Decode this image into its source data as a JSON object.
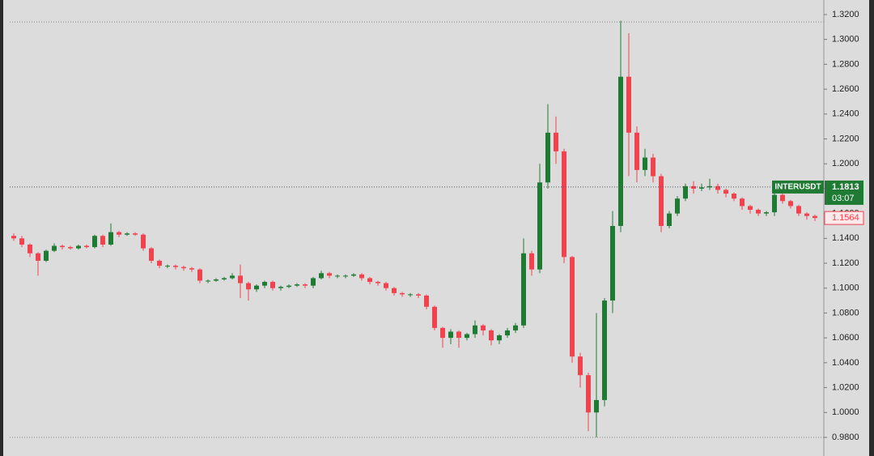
{
  "chart_data": {
    "type": "candlestick",
    "symbol": "INTERUSDT",
    "last_price": 1.1813,
    "countdown": "03:07",
    "close_price": 1.1564,
    "up_color": "#1f7a33",
    "down_color": "#f0424f",
    "range_lines": [
      1.314,
      0.98
    ],
    "ylim": [
      0.965,
      1.3317
    ],
    "yticks": [
      {
        "value": 0.98,
        "label": "0.9800"
      },
      {
        "value": 1.0,
        "label": "1.0000"
      },
      {
        "value": 1.02,
        "label": "1.0200"
      },
      {
        "value": 1.04,
        "label": "1.0400"
      },
      {
        "value": 1.06,
        "label": "1.0600"
      },
      {
        "value": 1.08,
        "label": "1.0800"
      },
      {
        "value": 1.1,
        "label": "1.1000"
      },
      {
        "value": 1.12,
        "label": "1.1200"
      },
      {
        "value": 1.14,
        "label": "1.1400"
      },
      {
        "value": 1.16,
        "label": "1.1600"
      },
      {
        "value": 1.18,
        "label": "1.1800"
      },
      {
        "value": 1.2,
        "label": "1.2000"
      },
      {
        "value": 1.22,
        "label": "1.2200"
      },
      {
        "value": 1.24,
        "label": "1.2400"
      },
      {
        "value": 1.26,
        "label": "1.2600"
      },
      {
        "value": 1.28,
        "label": "1.2800"
      },
      {
        "value": 1.3,
        "label": "1.3000"
      },
      {
        "value": 1.32,
        "label": "1.3200"
      }
    ],
    "open": [
      1.142,
      1.14,
      1.135,
      1.128,
      1.122,
      1.13,
      1.134,
      1.133,
      1.132,
      1.134,
      1.133,
      1.142,
      1.135,
      1.145,
      1.143,
      1.144,
      1.143,
      1.132,
      1.122,
      1.118,
      1.118,
      1.117,
      1.116,
      1.115,
      1.106,
      1.106,
      1.107,
      1.108,
      1.11,
      1.104,
      1.099,
      1.102,
      1.105,
      1.1,
      1.101,
      1.102,
      1.103,
      1.102,
      1.108,
      1.112,
      1.11,
      1.11,
      1.11,
      1.111,
      1.108,
      1.105,
      1.104,
      1.1,
      1.096,
      1.095,
      1.095,
      1.094,
      1.085,
      1.068,
      1.06,
      1.065,
      1.06,
      1.063,
      1.07,
      1.066,
      1.058,
      1.062,
      1.066,
      1.07,
      1.128,
      1.115,
      1.185,
      1.225,
      1.21,
      1.125,
      1.045,
      1.03,
      1.0,
      1.01,
      1.09,
      1.15,
      1.27,
      1.225,
      1.195,
      1.205,
      1.19,
      1.15,
      1.16,
      1.172,
      1.182,
      1.18,
      1.181,
      1.182,
      1.179,
      1.176,
      1.172,
      1.166,
      1.163,
      1.16,
      1.161,
      1.175,
      1.17,
      1.166,
      1.16,
      1.158
    ],
    "high": [
      1.144,
      1.142,
      1.136,
      1.129,
      1.131,
      1.136,
      1.135,
      1.134,
      1.135,
      1.135,
      1.143,
      1.143,
      1.152,
      1.146,
      1.145,
      1.145,
      1.144,
      1.133,
      1.123,
      1.119,
      1.119,
      1.118,
      1.117,
      1.116,
      1.107,
      1.108,
      1.109,
      1.112,
      1.119,
      1.105,
      1.103,
      1.106,
      1.106,
      1.102,
      1.103,
      1.104,
      1.104,
      1.109,
      1.114,
      1.113,
      1.111,
      1.111,
      1.112,
      1.112,
      1.109,
      1.106,
      1.105,
      1.101,
      1.097,
      1.096,
      1.096,
      1.095,
      1.086,
      1.069,
      1.067,
      1.066,
      1.064,
      1.074,
      1.071,
      1.067,
      1.063,
      1.068,
      1.072,
      1.14,
      1.13,
      1.2,
      1.248,
      1.238,
      1.212,
      1.126,
      1.048,
      1.032,
      1.08,
      1.092,
      1.162,
      1.315,
      1.305,
      1.23,
      1.212,
      1.208,
      1.192,
      1.162,
      1.174,
      1.184,
      1.186,
      1.184,
      1.188,
      1.184,
      1.18,
      1.177,
      1.173,
      1.167,
      1.164,
      1.162,
      1.178,
      1.176,
      1.171,
      1.167,
      1.161,
      1.159
    ],
    "low": [
      1.138,
      1.133,
      1.125,
      1.11,
      1.121,
      1.129,
      1.131,
      1.131,
      1.131,
      1.132,
      1.132,
      1.133,
      1.134,
      1.141,
      1.142,
      1.142,
      1.13,
      1.12,
      1.116,
      1.116,
      1.115,
      1.114,
      1.113,
      1.104,
      1.104,
      1.105,
      1.106,
      1.107,
      1.092,
      1.09,
      1.097,
      1.1,
      1.098,
      1.098,
      1.1,
      1.101,
      1.1,
      1.1,
      1.107,
      1.108,
      1.108,
      1.108,
      1.109,
      1.106,
      1.103,
      1.102,
      1.098,
      1.094,
      1.093,
      1.093,
      1.092,
      1.083,
      1.066,
      1.052,
      1.055,
      1.052,
      1.058,
      1.06,
      1.062,
      1.054,
      1.055,
      1.06,
      1.064,
      1.068,
      1.11,
      1.112,
      1.18,
      1.2,
      1.12,
      1.04,
      1.02,
      0.985,
      0.98,
      1.005,
      1.08,
      1.145,
      1.19,
      1.185,
      1.19,
      1.185,
      1.145,
      1.148,
      1.158,
      1.17,
      1.176,
      1.178,
      1.179,
      1.176,
      1.173,
      1.17,
      1.163,
      1.16,
      1.158,
      1.158,
      1.158,
      1.168,
      1.164,
      1.158,
      1.155,
      1.154
    ],
    "close": [
      1.14,
      1.135,
      1.128,
      1.122,
      1.13,
      1.134,
      1.133,
      1.132,
      1.134,
      1.133,
      1.142,
      1.135,
      1.145,
      1.143,
      1.144,
      1.143,
      1.132,
      1.122,
      1.118,
      1.118,
      1.117,
      1.116,
      1.115,
      1.106,
      1.106,
      1.107,
      1.108,
      1.11,
      1.104,
      1.099,
      1.102,
      1.105,
      1.1,
      1.101,
      1.102,
      1.103,
      1.102,
      1.108,
      1.112,
      1.11,
      1.11,
      1.11,
      1.111,
      1.108,
      1.105,
      1.104,
      1.1,
      1.096,
      1.095,
      1.095,
      1.094,
      1.085,
      1.068,
      1.06,
      1.065,
      1.06,
      1.063,
      1.07,
      1.066,
      1.058,
      1.062,
      1.066,
      1.07,
      1.128,
      1.115,
      1.185,
      1.225,
      1.21,
      1.125,
      1.045,
      1.03,
      1.0,
      1.01,
      1.09,
      1.15,
      1.27,
      1.225,
      1.195,
      1.205,
      1.19,
      1.15,
      1.16,
      1.172,
      1.182,
      1.18,
      1.181,
      1.182,
      1.179,
      1.176,
      1.172,
      1.166,
      1.163,
      1.16,
      1.161,
      1.175,
      1.17,
      1.166,
      1.16,
      1.158,
      1.1564
    ]
  }
}
